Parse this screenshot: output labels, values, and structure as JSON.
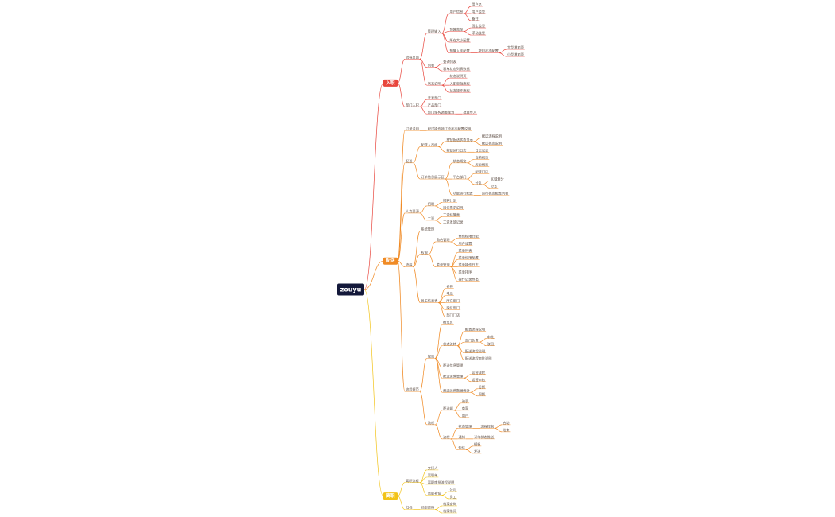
{
  "root": {
    "label": "zouyu",
    "children": [
      {
        "label": "入职",
        "children": [
          {
            "label": "流程页面",
            "children": [
              {
                "label": "管理输入",
                "children": [
                  {
                    "label": "用户信息",
                    "children": [
                      {
                        "label": "用户名"
                      },
                      {
                        "label": "用户类型"
                      },
                      {
                        "label": "备注"
                      }
                    ]
                  },
                  {
                    "label": "预算类型",
                    "children": [
                      {
                        "label": "固定类型"
                      },
                      {
                        "label": "浮动类型"
                      }
                    ]
                  },
                  {
                    "label": "所在大小配置"
                  },
                  {
                    "label": "预算入库配置",
                    "children": [
                      {
                        "label": "按钮状态配置",
                        "children": [
                          {
                            "label": "大型增加项"
                          },
                          {
                            "label": "小型增加项"
                          }
                        ]
                      }
                    ]
                  }
                ]
              },
              {
                "label": "列表",
                "children": [
                  {
                    "label": "查询列表"
                  },
                  {
                    "label": "表单状态列表数据"
                  }
                ]
              },
              {
                "label": "状态说明",
                "children": [
                  {
                    "label": "状态说明页"
                  },
                  {
                    "label": "入职审批流程"
                  },
                  {
                    "label": "状态操作流程"
                  }
                ]
              }
            ]
          },
          {
            "label": "部门入职",
            "children": [
              {
                "label": "开发部门"
              },
              {
                "label": "产品部门"
              },
              {
                "label": "部门架构调整规划",
                "children": [
                  {
                    "label": "批量导入"
                  }
                ]
              }
            ]
          }
        ]
      },
      {
        "label": "配送",
        "children": [
          {
            "label": "订单说明",
            "children": [
              {
                "label": "配送操作项订单状态配置说明"
              }
            ]
          },
          {
            "label": "配送",
            "children": [
              {
                "label": "配送人员组",
                "children": [
                  {
                    "label": "按钮配送状态显示",
                    "children": [
                      {
                        "label": "配送流程说明"
                      },
                      {
                        "label": "配送状态说明"
                      }
                    ]
                  },
                  {
                    "label": "按钮运行日志",
                    "children": [
                      {
                        "label": "日志记录"
                      }
                    ]
                  }
                ]
              },
              {
                "label": "订单信息展示区",
                "children": [
                  {
                    "label": "状态概览",
                    "children": [
                      {
                        "label": "当前概览"
                      },
                      {
                        "label": "历史概览"
                      }
                    ]
                  },
                  {
                    "label": "平台部门",
                    "children": [
                      {
                        "label": "配送门店"
                      },
                      {
                        "label": "分区",
                        "children": [
                          {
                            "label": "区域划分"
                          },
                          {
                            "label": "分支"
                          }
                        ]
                      }
                    ]
                  },
                  {
                    "label": "功能运行配置",
                    "children": [
                      {
                        "label": "运行状态配置列表"
                      }
                    ]
                  }
                ]
              }
            ]
          },
          {
            "label": "人力资源",
            "children": [
              {
                "label": "招聘",
                "children": [
                  {
                    "label": "招聘计划"
                  },
                  {
                    "label": "岗位需求说明"
                  }
                ]
              },
              {
                "label": "工资",
                "children": [
                  {
                    "label": "工资结算表"
                  },
                  {
                    "label": "工资发放记录"
                  }
                ]
              }
            ]
          },
          {
            "label": "流程",
            "children": [
              {
                "label": "系统管理"
              },
              {
                "label": "权限",
                "children": [
                  {
                    "label": "角色管理",
                    "children": [
                      {
                        "label": "角色权限分配"
                      },
                      {
                        "label": "用户设置"
                      }
                    ]
                  },
                  {
                    "label": "菜单管理",
                    "children": [
                      {
                        "label": "菜单列表"
                      },
                      {
                        "label": "菜单权限配置"
                      },
                      {
                        "label": "菜单操作日志"
                      },
                      {
                        "label": "菜单排序"
                      },
                      {
                        "label": "操作记录导出"
                      }
                    ]
                  }
                ]
              },
              {
                "label": "员工信息表",
                "children": [
                  {
                    "label": "名称"
                  },
                  {
                    "label": "电话"
                  },
                  {
                    "label": "所在部门"
                  },
                  {
                    "label": "岗位部门"
                  },
                  {
                    "label": "部门门店"
                  }
                ]
              }
            ]
          },
          {
            "label": "流程规范",
            "children": [
              {
                "label": "规则",
                "children": [
                  {
                    "label": "概览页"
                  },
                  {
                    "label": "状态流转",
                    "children": [
                      {
                        "label": "配置流程说明"
                      },
                      {
                        "label": "部门负责",
                        "children": [
                          {
                            "label": "审批"
                          },
                          {
                            "label": "驳回"
                          }
                        ]
                      },
                      {
                        "label": "配送流程说明"
                      },
                      {
                        "label": "配送流程审批说明"
                      }
                    ]
                  },
                  {
                    "label": "配送信息管理"
                  },
                  {
                    "label": "配送运营管理",
                    "children": [
                      {
                        "label": "运营流程"
                      },
                      {
                        "label": "运营审核"
                      }
                    ]
                  },
                  {
                    "label": "配送运营数据统计",
                    "children": [
                      {
                        "label": "日报"
                      },
                      {
                        "label": "周报"
                      }
                    ]
                  }
                ]
              },
              {
                "label": "流程",
                "children": [
                  {
                    "label": "配送端",
                    "children": [
                      {
                        "label": "骑手"
                      },
                      {
                        "label": "商家"
                      },
                      {
                        "label": "用户"
                      }
                    ]
                  },
                  {
                    "label": "流程",
                    "children": [
                      {
                        "label": "状态管理",
                        "children": [
                          {
                            "label": "流程控制",
                            "children": [
                              {
                                "label": "启动"
                              },
                              {
                                "label": "结束"
                              }
                            ]
                          }
                        ]
                      },
                      {
                        "label": "通知",
                        "children": [
                          {
                            "label": "订单状态推送"
                          }
                        ]
                      },
                      {
                        "label": "短信",
                        "children": [
                          {
                            "label": "模板"
                          },
                          {
                            "label": "发送"
                          }
                        ]
                      }
                    ]
                  }
                ]
              }
            ]
          }
        ]
      },
      {
        "label": "离职",
        "children": [
          {
            "label": "离职流程",
            "children": [
              {
                "label": "交接人"
              },
              {
                "label": "离职单"
              },
              {
                "label": "离职审批流程说明"
              },
              {
                "label": "离职补偿",
                "children": [
                  {
                    "label": "公司"
                  },
                  {
                    "label": "员工"
                  }
                ]
              }
            ]
          },
          {
            "label": "归档",
            "children": [
              {
                "label": "档案资料",
                "children": [
                  {
                    "label": "档案查询"
                  },
                  {
                    "label": "档案借阅"
                  }
                ]
              }
            ]
          }
        ]
      }
    ]
  }
}
